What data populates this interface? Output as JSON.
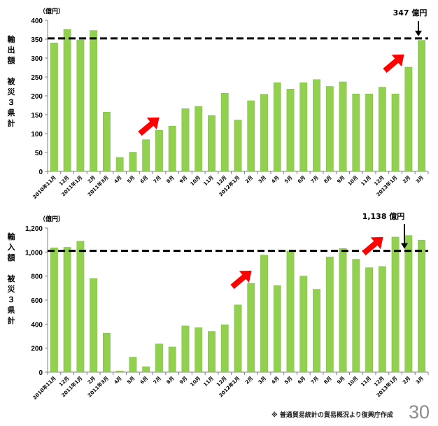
{
  "colors": {
    "bar": "#92d050",
    "bar_edge": "#7fb844",
    "axis": "#808080",
    "dash": "#000000",
    "arrow": "#ff0000"
  },
  "chart_data": [
    {
      "type": "bar",
      "unit_label": "（億円）",
      "ylabel": "輸出額　被災３県計",
      "ylim": [
        0,
        400
      ],
      "yticks": [
        0,
        50,
        100,
        150,
        200,
        250,
        300,
        350,
        400
      ],
      "ytick_labels": [
        "0",
        "50",
        "100",
        "150",
        "200",
        "250",
        "300",
        "350",
        "400"
      ],
      "categories": [
        "2010年11月",
        "12月",
        "2011年1月",
        "2月",
        "2011年3月",
        "4月",
        "5月",
        "6月",
        "7月",
        "8月",
        "9月",
        "10月",
        "11月",
        "12月",
        "2012年1月",
        "2月",
        "3月",
        "4月",
        "5月",
        "6月",
        "7月",
        "8月",
        "9月",
        "10月",
        "11月",
        "12月",
        "2013年1月",
        "2月",
        "3月"
      ],
      "values": [
        340,
        376,
        348,
        373,
        157,
        37,
        51,
        84,
        109,
        120,
        166,
        172,
        148,
        207,
        136,
        187,
        204,
        235,
        218,
        235,
        243,
        225,
        237,
        205,
        205,
        223,
        205,
        276,
        347
      ],
      "reference_line": 352,
      "callout": "347 億円",
      "grid": false
    },
    {
      "type": "bar",
      "unit_label": "（億円）",
      "ylabel": "輸入額　被災３県計",
      "ylim": [
        0,
        1200
      ],
      "yticks": [
        0,
        200,
        400,
        600,
        800,
        1000,
        1200
      ],
      "ytick_labels": [
        "0",
        "200",
        "400",
        "600",
        "800",
        "1,000",
        "1,200"
      ],
      "categories": [
        "2010年11月",
        "12月",
        "2011年1月",
        "2月",
        "2011年3月",
        "4月",
        "5月",
        "6月",
        "7月",
        "8月",
        "9月",
        "10月",
        "11月",
        "12月",
        "2012年1月",
        "2月",
        "3月",
        "4月",
        "5月",
        "6月",
        "7月",
        "8月",
        "9月",
        "10月",
        "11月",
        "12月",
        "2013年1月",
        "2月",
        "3月"
      ],
      "values": [
        1035,
        1040,
        1090,
        780,
        325,
        10,
        125,
        45,
        235,
        210,
        385,
        370,
        340,
        395,
        560,
        740,
        975,
        720,
        1010,
        800,
        690,
        960,
        1030,
        940,
        870,
        880,
        1125,
        1138,
        1100
      ],
      "reference_line": 1010,
      "callout": "1,138 億円",
      "grid": false
    }
  ],
  "footnote": "※ 普通貿易統計の貿易概況より復興庁作成",
  "page_number": "30"
}
